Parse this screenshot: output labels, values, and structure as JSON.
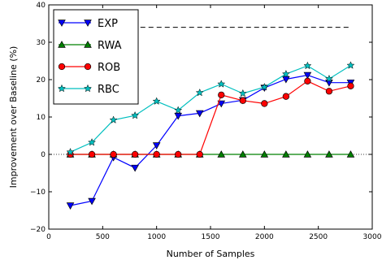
{
  "chart_data": {
    "type": "line",
    "xlabel": "Number of Samples",
    "ylabel": "Improvement over Baseline (%)",
    "xlim": [
      0,
      3000
    ],
    "ylim": [
      -20,
      40
    ],
    "xticks": [
      0,
      500,
      1000,
      1500,
      2000,
      2500,
      3000
    ],
    "yticks": [
      -20,
      -10,
      0,
      10,
      20,
      30,
      40
    ],
    "grid": "dotted horizontal line at y=0",
    "legend_position": "top-left",
    "reference_line": {
      "style": "dashed",
      "y": 34,
      "x_range": [
        850,
        2800
      ]
    },
    "x": [
      200,
      400,
      600,
      800,
      1000,
      1200,
      1400,
      1600,
      1800,
      2000,
      2200,
      2400,
      2600,
      2800
    ],
    "series": [
      {
        "name": "EXP",
        "color": "#0000ff",
        "marker": "triangle-down",
        "values": [
          -13.7,
          -12.5,
          -0.8,
          -3.6,
          2.4,
          10.3,
          11.0,
          13.6,
          14.5,
          17.8,
          20.1,
          21.2,
          19.2,
          19.2
        ]
      },
      {
        "name": "RWA",
        "color": "#008000",
        "marker": "triangle-up",
        "values": [
          0,
          0,
          0,
          0,
          0,
          0,
          0,
          0,
          0,
          0,
          0,
          0,
          0,
          0
        ]
      },
      {
        "name": "ROB",
        "color": "#ff0000",
        "marker": "circle",
        "values": [
          0,
          0,
          0,
          0,
          0,
          0,
          0,
          15.9,
          14.4,
          13.6,
          15.5,
          19.6,
          16.9,
          18.3
        ]
      },
      {
        "name": "RBC",
        "color": "#00bfbf",
        "marker": "star",
        "values": [
          0.6,
          3.2,
          9.2,
          10.4,
          14.2,
          11.8,
          16.5,
          18.8,
          16.3,
          18.0,
          21.5,
          23.7,
          20.2,
          23.8
        ]
      }
    ]
  }
}
